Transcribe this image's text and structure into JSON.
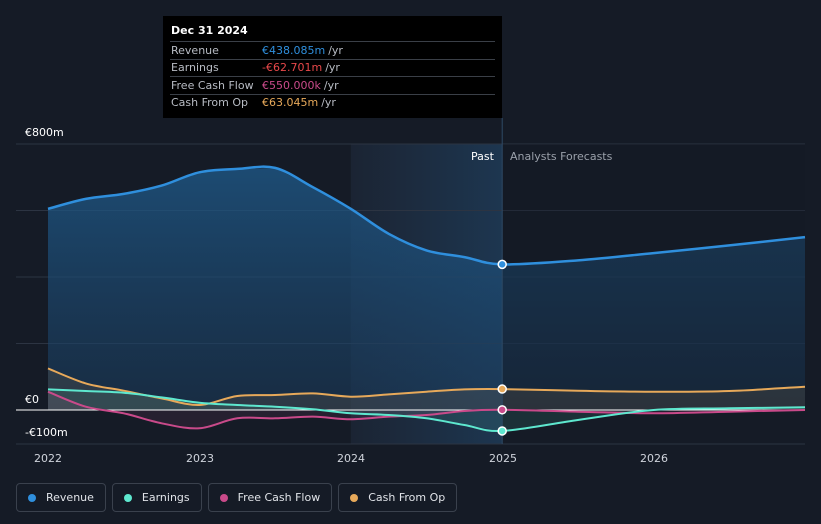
{
  "chart_data": {
    "type": "line",
    "title": "",
    "y_ticks": [
      "€800m",
      "€0",
      "-€100m"
    ],
    "x_ticks": [
      "2022",
      "2023",
      "2024",
      "2025",
      "2026"
    ],
    "ylim": [
      -100,
      800
    ],
    "xlim": [
      2022,
      2027
    ],
    "past_label": "Past",
    "forecast_label": "Analysts Forecasts",
    "divider_x": 2025,
    "series": [
      {
        "name": "Revenue",
        "color": "#2f8fdd",
        "x": [
          2022.0,
          2022.25,
          2022.5,
          2022.75,
          2023.0,
          2023.25,
          2023.5,
          2023.75,
          2024.0,
          2024.25,
          2024.5,
          2024.75,
          2025.0,
          2025.5,
          2026.0,
          2026.5,
          2027.0
        ],
        "values": [
          605,
          635,
          650,
          675,
          715,
          725,
          728,
          670,
          605,
          530,
          480,
          460,
          438,
          450,
          472,
          495,
          520
        ]
      },
      {
        "name": "Earnings",
        "color": "#5ee8cf",
        "x": [
          2022.0,
          2022.25,
          2022.5,
          2022.75,
          2023.0,
          2023.25,
          2023.5,
          2023.75,
          2024.0,
          2024.25,
          2024.5,
          2024.75,
          2025.0,
          2025.5,
          2026.0,
          2026.5,
          2027.0
        ],
        "values": [
          62,
          57,
          52,
          38,
          22,
          15,
          10,
          2,
          -10,
          -15,
          -25,
          -45,
          -63,
          -30,
          0,
          5,
          8
        ]
      },
      {
        "name": "Free Cash Flow",
        "color": "#c94a8a",
        "x": [
          2022.0,
          2022.25,
          2022.5,
          2022.75,
          2023.0,
          2023.25,
          2023.5,
          2023.75,
          2024.0,
          2024.25,
          2024.5,
          2024.75,
          2025.0,
          2025.5,
          2026.0,
          2026.5,
          2027.0
        ],
        "values": [
          55,
          10,
          -10,
          -40,
          -55,
          -25,
          -25,
          -20,
          -28,
          -20,
          -15,
          -3,
          0.55,
          -5,
          -10,
          -5,
          0
        ]
      },
      {
        "name": "Cash From Op",
        "color": "#e7a95a",
        "x": [
          2022.0,
          2022.25,
          2022.5,
          2022.75,
          2023.0,
          2023.25,
          2023.5,
          2023.75,
          2024.0,
          2024.25,
          2024.5,
          2024.75,
          2025.0,
          2025.5,
          2026.0,
          2026.5,
          2027.0
        ],
        "values": [
          125,
          80,
          58,
          35,
          15,
          42,
          45,
          50,
          40,
          47,
          55,
          62,
          63,
          58,
          55,
          57,
          70
        ]
      }
    ]
  },
  "tooltip": {
    "date": "Dec 31 2024",
    "unit": "/yr",
    "rows": [
      {
        "name": "Revenue",
        "value": "€438.085m",
        "color": "#2f8fdd"
      },
      {
        "name": "Earnings",
        "value": "-€62.701m",
        "color": "#e8484a"
      },
      {
        "name": "Free Cash Flow",
        "value": "€550.000k",
        "color": "#c94a8a"
      },
      {
        "name": "Cash From Op",
        "value": "€63.045m",
        "color": "#e7a95a"
      }
    ]
  },
  "legend": [
    {
      "name": "Revenue",
      "color": "#2f8fdd"
    },
    {
      "name": "Earnings",
      "color": "#5ee8cf"
    },
    {
      "name": "Free Cash Flow",
      "color": "#c94a8a"
    },
    {
      "name": "Cash From Op",
      "color": "#e7a95a"
    }
  ]
}
